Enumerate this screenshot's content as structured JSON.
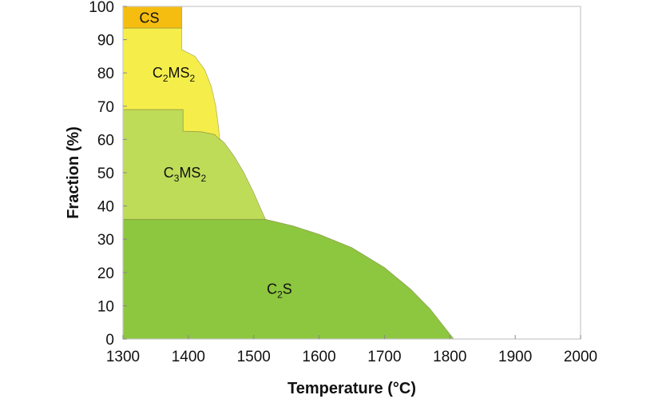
{
  "chart_data": {
    "type": "area",
    "xlabel": "Temperature (°C)",
    "ylabel": "Fraction (%)",
    "xlim": [
      1300,
      2000
    ],
    "ylim": [
      0,
      100
    ],
    "xticks": [
      1300,
      1400,
      1500,
      1600,
      1700,
      1800,
      1900,
      2000
    ],
    "yticks": [
      0,
      10,
      20,
      30,
      40,
      50,
      60,
      70,
      80,
      90,
      100
    ],
    "grid": false,
    "legend": "none",
    "series": [
      {
        "name": "C2S",
        "label_parts": [
          {
            "t": "C"
          },
          {
            "t": "2",
            "sub": true
          },
          {
            "t": "S"
          }
        ],
        "color": "#8dc63f",
        "label_at": [
          1520,
          15
        ],
        "lower": [
          [
            1300,
            0
          ],
          [
            1806,
            0
          ]
        ],
        "upper": [
          [
            1300,
            36
          ],
          [
            1518,
            36
          ],
          [
            1560,
            34
          ],
          [
            1600,
            31.5
          ],
          [
            1650,
            27.5
          ],
          [
            1700,
            21.5
          ],
          [
            1740,
            15
          ],
          [
            1770,
            9
          ],
          [
            1790,
            4
          ],
          [
            1806,
            0
          ]
        ]
      },
      {
        "name": "C3MS2",
        "label_parts": [
          {
            "t": "C"
          },
          {
            "t": "3",
            "sub": true
          },
          {
            "t": "MS"
          },
          {
            "t": "2",
            "sub": true
          }
        ],
        "color": "#bfdc58",
        "label_at": [
          1362,
          50
        ],
        "lower": [
          [
            1300,
            36
          ],
          [
            1518,
            36
          ]
        ],
        "upper": [
          [
            1300,
            69
          ],
          [
            1392,
            69
          ],
          [
            1392,
            62.5
          ],
          [
            1420,
            62.3
          ],
          [
            1440,
            61.5
          ],
          [
            1455,
            59
          ],
          [
            1470,
            55
          ],
          [
            1485,
            50
          ],
          [
            1500,
            44
          ],
          [
            1510,
            39.5
          ],
          [
            1518,
            36
          ]
        ]
      },
      {
        "name": "C2MS2",
        "label_parts": [
          {
            "t": "C"
          },
          {
            "t": "2",
            "sub": true
          },
          {
            "t": "MS"
          },
          {
            "t": "2",
            "sub": true
          }
        ],
        "color": "#f5ee4a",
        "label_at": [
          1345,
          80
        ],
        "lower": [
          [
            1300,
            69
          ],
          [
            1392,
            69
          ],
          [
            1392,
            62.5
          ],
          [
            1420,
            62.3
          ],
          [
            1440,
            61.5
          ],
          [
            1448,
            60
          ]
        ],
        "upper": [
          [
            1300,
            93.5
          ],
          [
            1390,
            93.5
          ],
          [
            1390,
            87
          ],
          [
            1410,
            85
          ],
          [
            1425,
            81
          ],
          [
            1435,
            76
          ],
          [
            1442,
            70
          ],
          [
            1446,
            64
          ],
          [
            1448,
            60
          ]
        ]
      },
      {
        "name": "CS",
        "label_parts": [
          {
            "t": "CS"
          }
        ],
        "color": "#f5bd10",
        "label_at": [
          1325,
          96.5
        ],
        "lower": [
          [
            1300,
            93.5
          ],
          [
            1390,
            93.5
          ]
        ],
        "upper": [
          [
            1300,
            100
          ],
          [
            1390,
            100
          ]
        ]
      }
    ]
  }
}
